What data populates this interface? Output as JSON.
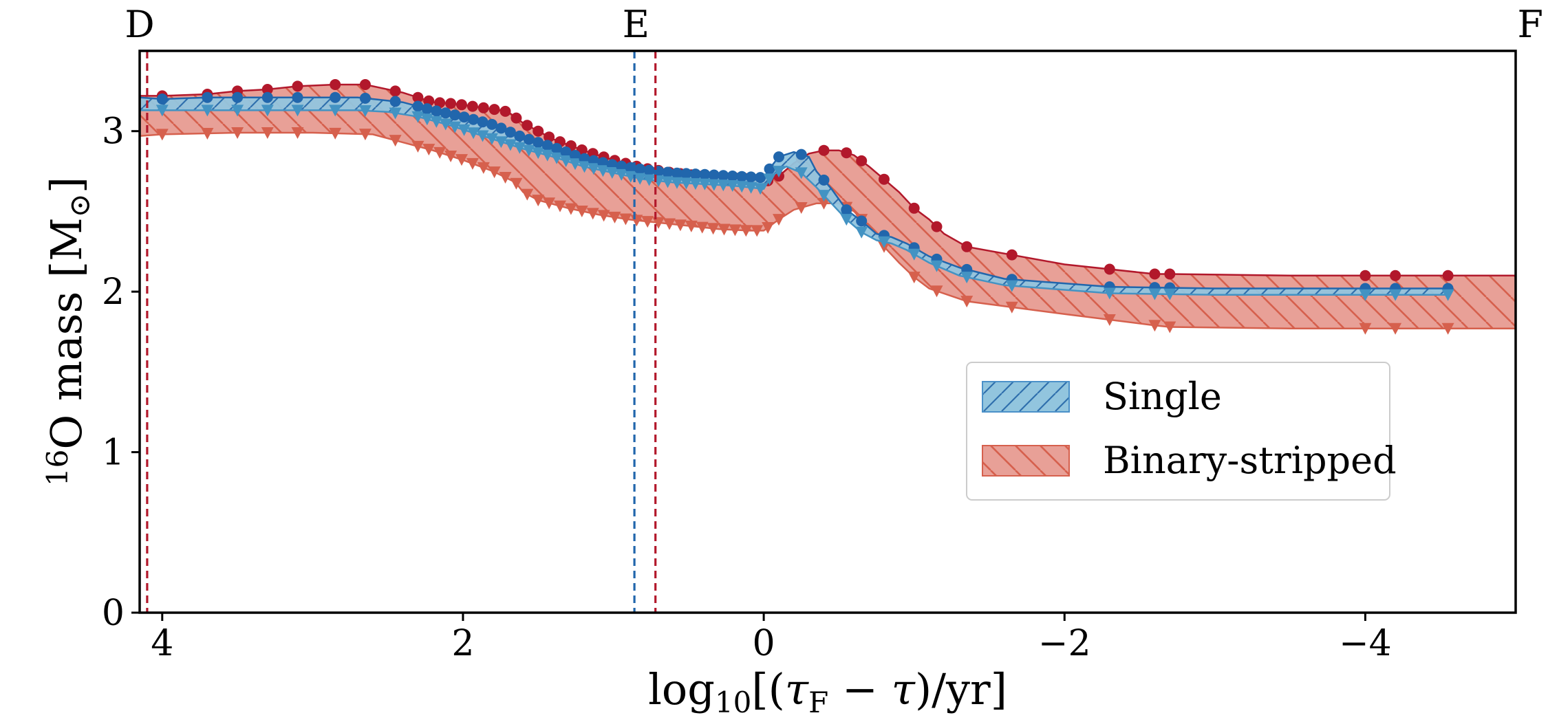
{
  "chart_data": {
    "type": "area",
    "xlabel": "log10[(τF − τ)/yr]",
    "ylabel": "16O mass [M⊙]",
    "xlim": [
      4.15,
      -5.0
    ],
    "ylim": [
      0,
      3.5
    ],
    "x_ticks": [
      4,
      2,
      0,
      -2,
      -4
    ],
    "x_tick_labels": [
      "4",
      "2",
      "0",
      "−2",
      "−4"
    ],
    "y_ticks": [
      0,
      1,
      2,
      3
    ],
    "y_tick_labels": [
      "0",
      "1",
      "2",
      "3"
    ],
    "phase_markers": [
      {
        "label": "D",
        "x": 4.15
      },
      {
        "label": "E",
        "x": 0.85
      },
      {
        "label": "F",
        "x": -5.0
      }
    ],
    "vertical_lines": [
      {
        "series": "Binary-stripped",
        "x": 4.1,
        "color": "#b2182b"
      },
      {
        "series": "Single",
        "x": 0.86,
        "color": "#2166ac"
      },
      {
        "series": "Binary-stripped",
        "x": 0.72,
        "color": "#b2182b"
      }
    ],
    "legend": {
      "position": "center-right",
      "entries": [
        {
          "label": "Single",
          "fill": "#92c5de",
          "edge": "#4a90c8"
        },
        {
          "label": "Binary-stripped",
          "fill": "#e8a097",
          "edge": "#d6604d"
        }
      ]
    },
    "series": [
      {
        "name": "Binary-stripped",
        "fill_color": "#e8a097",
        "max_color": "#b2182b",
        "min_color": "#d6604d",
        "max_points": [
          [
            4.15,
            3.22
          ],
          [
            4.0,
            3.22
          ],
          [
            3.7,
            3.23
          ],
          [
            3.5,
            3.25
          ],
          [
            3.3,
            3.26
          ],
          [
            3.1,
            3.28
          ],
          [
            2.85,
            3.29
          ],
          [
            2.65,
            3.29
          ],
          [
            2.4,
            3.24
          ],
          [
            2.2,
            3.18
          ],
          [
            2.05,
            3.17
          ],
          [
            1.9,
            3.15
          ],
          [
            1.75,
            3.13
          ],
          [
            1.7,
            3.12
          ],
          [
            1.6,
            3.05
          ],
          [
            1.4,
            2.95
          ],
          [
            1.2,
            2.88
          ],
          [
            1.0,
            2.82
          ],
          [
            0.8,
            2.77
          ],
          [
            0.6,
            2.74
          ],
          [
            0.4,
            2.72
          ],
          [
            0.2,
            2.71
          ],
          [
            0.05,
            2.7
          ],
          [
            0.0,
            2.68
          ],
          [
            -0.1,
            2.72
          ],
          [
            -0.2,
            2.8
          ],
          [
            -0.3,
            2.86
          ],
          [
            -0.4,
            2.88
          ],
          [
            -0.5,
            2.88
          ],
          [
            -0.6,
            2.85
          ],
          [
            -0.7,
            2.78
          ],
          [
            -0.8,
            2.7
          ],
          [
            -0.9,
            2.62
          ],
          [
            -1.0,
            2.52
          ],
          [
            -1.1,
            2.45
          ],
          [
            -1.2,
            2.36
          ],
          [
            -1.35,
            2.28
          ],
          [
            -2.0,
            2.17
          ],
          [
            -2.6,
            2.11
          ],
          [
            -2.7,
            2.11
          ],
          [
            -3.5,
            2.1
          ],
          [
            -4.2,
            2.1
          ],
          [
            -5.0,
            2.1
          ]
        ],
        "min_points": [
          [
            4.15,
            2.97
          ],
          [
            4.0,
            2.98
          ],
          [
            3.5,
            2.99
          ],
          [
            3.0,
            2.99
          ],
          [
            2.6,
            2.98
          ],
          [
            2.4,
            2.93
          ],
          [
            2.2,
            2.88
          ],
          [
            2.0,
            2.82
          ],
          [
            1.8,
            2.75
          ],
          [
            1.65,
            2.68
          ],
          [
            1.6,
            2.62
          ],
          [
            1.5,
            2.57
          ],
          [
            1.3,
            2.52
          ],
          [
            1.1,
            2.48
          ],
          [
            0.9,
            2.45
          ],
          [
            0.6,
            2.42
          ],
          [
            0.3,
            2.39
          ],
          [
            0.1,
            2.38
          ],
          [
            0.0,
            2.38
          ],
          [
            -0.1,
            2.45
          ],
          [
            -0.2,
            2.51
          ],
          [
            -0.35,
            2.55
          ],
          [
            -0.5,
            2.55
          ],
          [
            -0.6,
            2.5
          ],
          [
            -0.7,
            2.4
          ],
          [
            -0.8,
            2.28
          ],
          [
            -0.9,
            2.18
          ],
          [
            -1.0,
            2.09
          ],
          [
            -1.1,
            2.02
          ],
          [
            -1.35,
            1.94
          ],
          [
            -2.0,
            1.86
          ],
          [
            -2.6,
            1.79
          ],
          [
            -2.7,
            1.78
          ],
          [
            -3.5,
            1.77
          ],
          [
            -4.2,
            1.77
          ],
          [
            -5.0,
            1.77
          ]
        ]
      },
      {
        "name": "Single",
        "fill_color": "#92c5de",
        "max_color": "#2166ac",
        "min_color": "#4393c3",
        "max_points": [
          [
            4.15,
            3.21
          ],
          [
            4.0,
            3.2
          ],
          [
            3.7,
            3.21
          ],
          [
            3.5,
            3.21
          ],
          [
            3.3,
            3.21
          ],
          [
            3.0,
            3.21
          ],
          [
            2.7,
            3.21
          ],
          [
            2.6,
            3.2
          ],
          [
            2.4,
            3.18
          ],
          [
            2.2,
            3.13
          ],
          [
            2.0,
            3.09
          ],
          [
            1.8,
            3.04
          ],
          [
            1.7,
            3.0
          ],
          [
            1.6,
            2.96
          ],
          [
            1.4,
            2.9
          ],
          [
            1.2,
            2.83
          ],
          [
            1.0,
            2.79
          ],
          [
            0.8,
            2.76
          ],
          [
            0.6,
            2.74
          ],
          [
            0.4,
            2.73
          ],
          [
            0.2,
            2.72
          ],
          [
            0.0,
            2.71
          ],
          [
            -0.05,
            2.78
          ],
          [
            -0.1,
            2.84
          ],
          [
            -0.2,
            2.87
          ],
          [
            -0.3,
            2.84
          ],
          [
            -0.35,
            2.75
          ],
          [
            -0.45,
            2.64
          ],
          [
            -0.55,
            2.51
          ],
          [
            -0.65,
            2.44
          ],
          [
            -0.75,
            2.36
          ],
          [
            -0.85,
            2.34
          ],
          [
            -0.95,
            2.3
          ],
          [
            -1.1,
            2.22
          ],
          [
            -1.3,
            2.15
          ],
          [
            -1.6,
            2.08
          ],
          [
            -2.3,
            2.03
          ],
          [
            -3.0,
            2.02
          ],
          [
            -4.0,
            2.02
          ],
          [
            -4.55,
            2.02
          ]
        ],
        "min_points": [
          [
            4.15,
            3.13
          ],
          [
            4.0,
            3.13
          ],
          [
            3.5,
            3.13
          ],
          [
            3.0,
            3.13
          ],
          [
            2.7,
            3.13
          ],
          [
            2.5,
            3.12
          ],
          [
            2.3,
            3.09
          ],
          [
            2.1,
            3.04
          ],
          [
            1.9,
            2.98
          ],
          [
            1.7,
            2.92
          ],
          [
            1.6,
            2.89
          ],
          [
            1.4,
            2.84
          ],
          [
            1.2,
            2.78
          ],
          [
            1.0,
            2.74
          ],
          [
            0.8,
            2.7
          ],
          [
            0.6,
            2.68
          ],
          [
            0.4,
            2.67
          ],
          [
            0.2,
            2.66
          ],
          [
            0.0,
            2.64
          ],
          [
            -0.05,
            2.72
          ],
          [
            -0.15,
            2.78
          ],
          [
            -0.25,
            2.74
          ],
          [
            -0.35,
            2.65
          ],
          [
            -0.45,
            2.55
          ],
          [
            -0.55,
            2.45
          ],
          [
            -0.65,
            2.37
          ],
          [
            -0.75,
            2.32
          ],
          [
            -0.85,
            2.3
          ],
          [
            -0.95,
            2.26
          ],
          [
            -1.1,
            2.18
          ],
          [
            -1.3,
            2.1
          ],
          [
            -1.6,
            2.04
          ],
          [
            -2.3,
            1.99
          ],
          [
            -3.0,
            1.98
          ],
          [
            -4.0,
            1.98
          ],
          [
            -4.55,
            1.98
          ]
        ]
      }
    ]
  }
}
